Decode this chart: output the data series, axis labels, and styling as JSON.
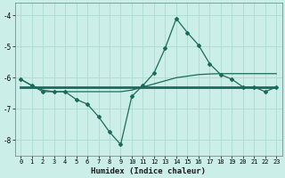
{
  "xlabel": "Humidex (Indice chaleur)",
  "ylabel": "",
  "background_color": "#cceee8",
  "grid_color": "#aaddcc",
  "line_color": "#1a6b5a",
  "x_values": [
    0,
    1,
    2,
    3,
    4,
    5,
    6,
    7,
    8,
    9,
    10,
    11,
    12,
    13,
    14,
    15,
    16,
    17,
    18,
    19,
    20,
    21,
    22,
    23
  ],
  "series1": [
    -6.05,
    -6.25,
    -6.45,
    -6.45,
    -6.45,
    -6.7,
    -6.85,
    -7.25,
    -7.75,
    -8.15,
    -6.6,
    -6.25,
    -5.85,
    -5.05,
    -4.1,
    -4.55,
    -4.95,
    -5.55,
    -5.9,
    -6.05,
    -6.3,
    -6.3,
    -6.45,
    -6.3
  ],
  "series2": [
    -6.05,
    -6.25,
    -6.4,
    -6.45,
    -6.45,
    -6.45,
    -6.45,
    -6.45,
    -6.45,
    -6.45,
    -6.4,
    -6.3,
    -6.2,
    -6.1,
    -6.0,
    -5.95,
    -5.9,
    -5.88,
    -5.87,
    -5.87,
    -5.87,
    -5.87,
    -5.87,
    -5.87
  ],
  "series3": [
    -6.3,
    -6.3,
    -6.3,
    -6.3,
    -6.3,
    -6.3,
    -6.3,
    -6.3,
    -6.3,
    -6.3,
    -6.3,
    -6.3,
    -6.3,
    -6.3,
    -6.3,
    -6.3,
    -6.3,
    -6.3,
    -6.3,
    -6.3,
    -6.3,
    -6.3,
    -6.3,
    -6.3
  ],
  "ylim": [
    -8.5,
    -3.6
  ],
  "xlim": [
    -0.5,
    23.5
  ],
  "yticks": [
    -8,
    -7,
    -6,
    -5,
    -4
  ],
  "xticks": [
    0,
    1,
    2,
    3,
    4,
    5,
    6,
    7,
    8,
    9,
    10,
    11,
    12,
    13,
    14,
    15,
    16,
    17,
    18,
    19,
    20,
    21,
    22,
    23
  ],
  "tick_fontsize": 5.0,
  "xlabel_fontsize": 6.5
}
